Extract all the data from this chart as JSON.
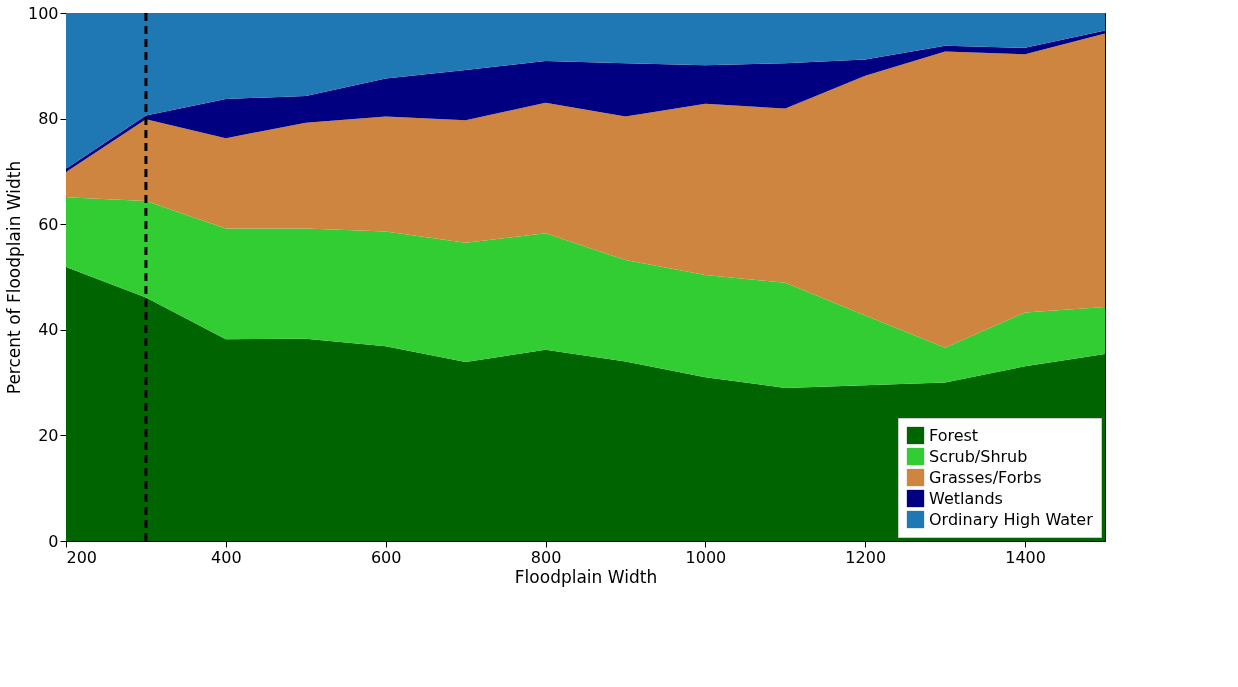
{
  "chart_data": {
    "type": "area",
    "stacked": true,
    "xlabel": "Floodplain Width",
    "ylabel": "Percent of Floodplain Width",
    "x": [
      200,
      300,
      400,
      500,
      600,
      700,
      800,
      900,
      1000,
      1100,
      1200,
      1300,
      1400,
      1500
    ],
    "series": [
      {
        "name": "Forest",
        "color": "#006400",
        "values": [
          51.9,
          46.1,
          38.2,
          38.3,
          36.9,
          33.9,
          36.2,
          34.0,
          31.0,
          29.0,
          29.5,
          30.0,
          33.1,
          35.4
        ]
      },
      {
        "name": "Scrub/Shrub",
        "color": "#32cd32",
        "values": [
          13.2,
          18.3,
          21.0,
          20.9,
          21.7,
          22.6,
          22.1,
          19.2,
          19.4,
          19.9,
          13.2,
          6.6,
          10.2,
          8.9
        ]
      },
      {
        "name": "Grasses/Forbs",
        "color": "#cd853f",
        "values": [
          4.8,
          15.5,
          17.1,
          20.0,
          21.8,
          23.2,
          24.7,
          27.2,
          32.4,
          33.0,
          45.4,
          56.1,
          48.9,
          51.8
        ]
      },
      {
        "name": "Wetlands",
        "color": "#000080",
        "values": [
          0.6,
          0.7,
          7.4,
          5.1,
          7.2,
          9.5,
          7.9,
          10.1,
          7.3,
          8.6,
          3.1,
          1.1,
          1.2,
          0.6
        ]
      },
      {
        "name": "Ordinary High Water",
        "color": "#1f77b4",
        "values": [
          29.5,
          19.4,
          16.3,
          15.7,
          12.4,
          10.8,
          9.1,
          9.5,
          9.9,
          9.5,
          8.8,
          6.2,
          6.6,
          3.3
        ]
      }
    ],
    "xlim": [
      200,
      1500
    ],
    "xticks": [
      200,
      400,
      600,
      800,
      1000,
      1200,
      1400
    ],
    "ylim": [
      0,
      100
    ],
    "yticks": [
      0,
      20,
      40,
      60,
      80,
      100
    ],
    "ref_lines": [
      {
        "axis": "x",
        "value": 300,
        "color": "#000000",
        "line_style": "dashed"
      }
    ],
    "grid": false,
    "legend": "bottom right"
  }
}
